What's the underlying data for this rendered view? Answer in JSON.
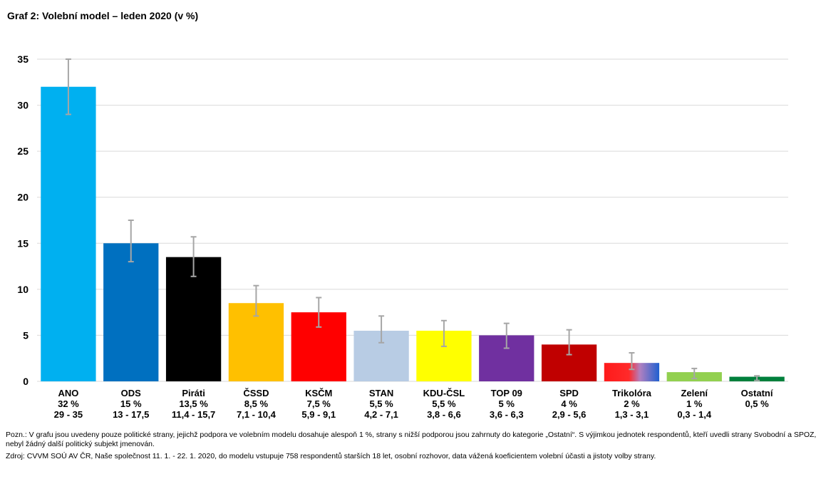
{
  "title": "Graf 2: Volební model – leden 2020 (v %)",
  "chart_data": {
    "type": "bar",
    "title": "Graf 2: Volební model – leden 2020 (v %)",
    "categories": [
      "ANO",
      "ODS",
      "Piráti",
      "ČSSD",
      "KSČM",
      "STAN",
      "KDU-ČSL",
      "TOP 09",
      "SPD",
      "Trikolóra",
      "Zelení",
      "Ostatní"
    ],
    "values": [
      32,
      15,
      13.5,
      8.5,
      7.5,
      5.5,
      5.5,
      5,
      4,
      2,
      1,
      0.5
    ],
    "value_labels": [
      "32 %",
      "15 %",
      "13,5 %",
      "8,5 %",
      "7,5 %",
      "5,5 %",
      "5,5 %",
      "5 %",
      "4 %",
      "2 %",
      "1 %",
      "0,5 %"
    ],
    "range_labels": [
      "29 - 35",
      "13 - 17,5",
      "11,4 - 15,7",
      "7,1 - 10,4",
      "5,9 - 9,1",
      "4,2 - 7,1",
      "3,8 - 6,6",
      "3,6 - 6,3",
      "2,9 - 5,6",
      "1,3 - 3,1",
      "0,3 - 1,4",
      ""
    ],
    "error_low": [
      29,
      13,
      11.4,
      7.1,
      5.9,
      4.2,
      3.8,
      3.6,
      2.9,
      1.3,
      0.3,
      0.1
    ],
    "error_high": [
      35,
      17.5,
      15.7,
      10.4,
      9.1,
      7.1,
      6.6,
      6.3,
      5.6,
      3.1,
      1.4,
      0.6
    ],
    "colors": [
      "#00b0f0",
      "#0070c0",
      "#000000",
      "#ffc000",
      "#ff0000",
      "#b8cce4",
      "#ffff00",
      "#7030a0",
      "#c00000",
      "gradient:#ff0000,#0070c0",
      "#92d050",
      "#00803c"
    ],
    "error_bar_color": "#a6a6a6",
    "ylim": [
      0,
      35
    ],
    "yticks": [
      0,
      5,
      10,
      15,
      20,
      25,
      30,
      35
    ],
    "grid": true,
    "xlabel": "",
    "ylabel": ""
  },
  "notes": {
    "note1": "Pozn.: V grafu jsou uvedeny pouze politické strany, jejichž podpora ve volebním modelu dosahuje alespoň 1 %, strany s nižší podporou jsou zahrnuty do kategorie „Ostatní“. S výjimkou jednotek respondentů, kteří uvedli strany Svobodní a SPOZ, nebyl žádný další politický subjekt jmenován.",
    "note2": "Zdroj: CVVM SOÚ AV ČR, Naše společnost 11. 1. - 22. 1. 2020, do modelu vstupuje 758 respondentů starších 18 let, osobní rozhovor, data vážená koeficientem volební účasti a jistoty volby strany."
  }
}
